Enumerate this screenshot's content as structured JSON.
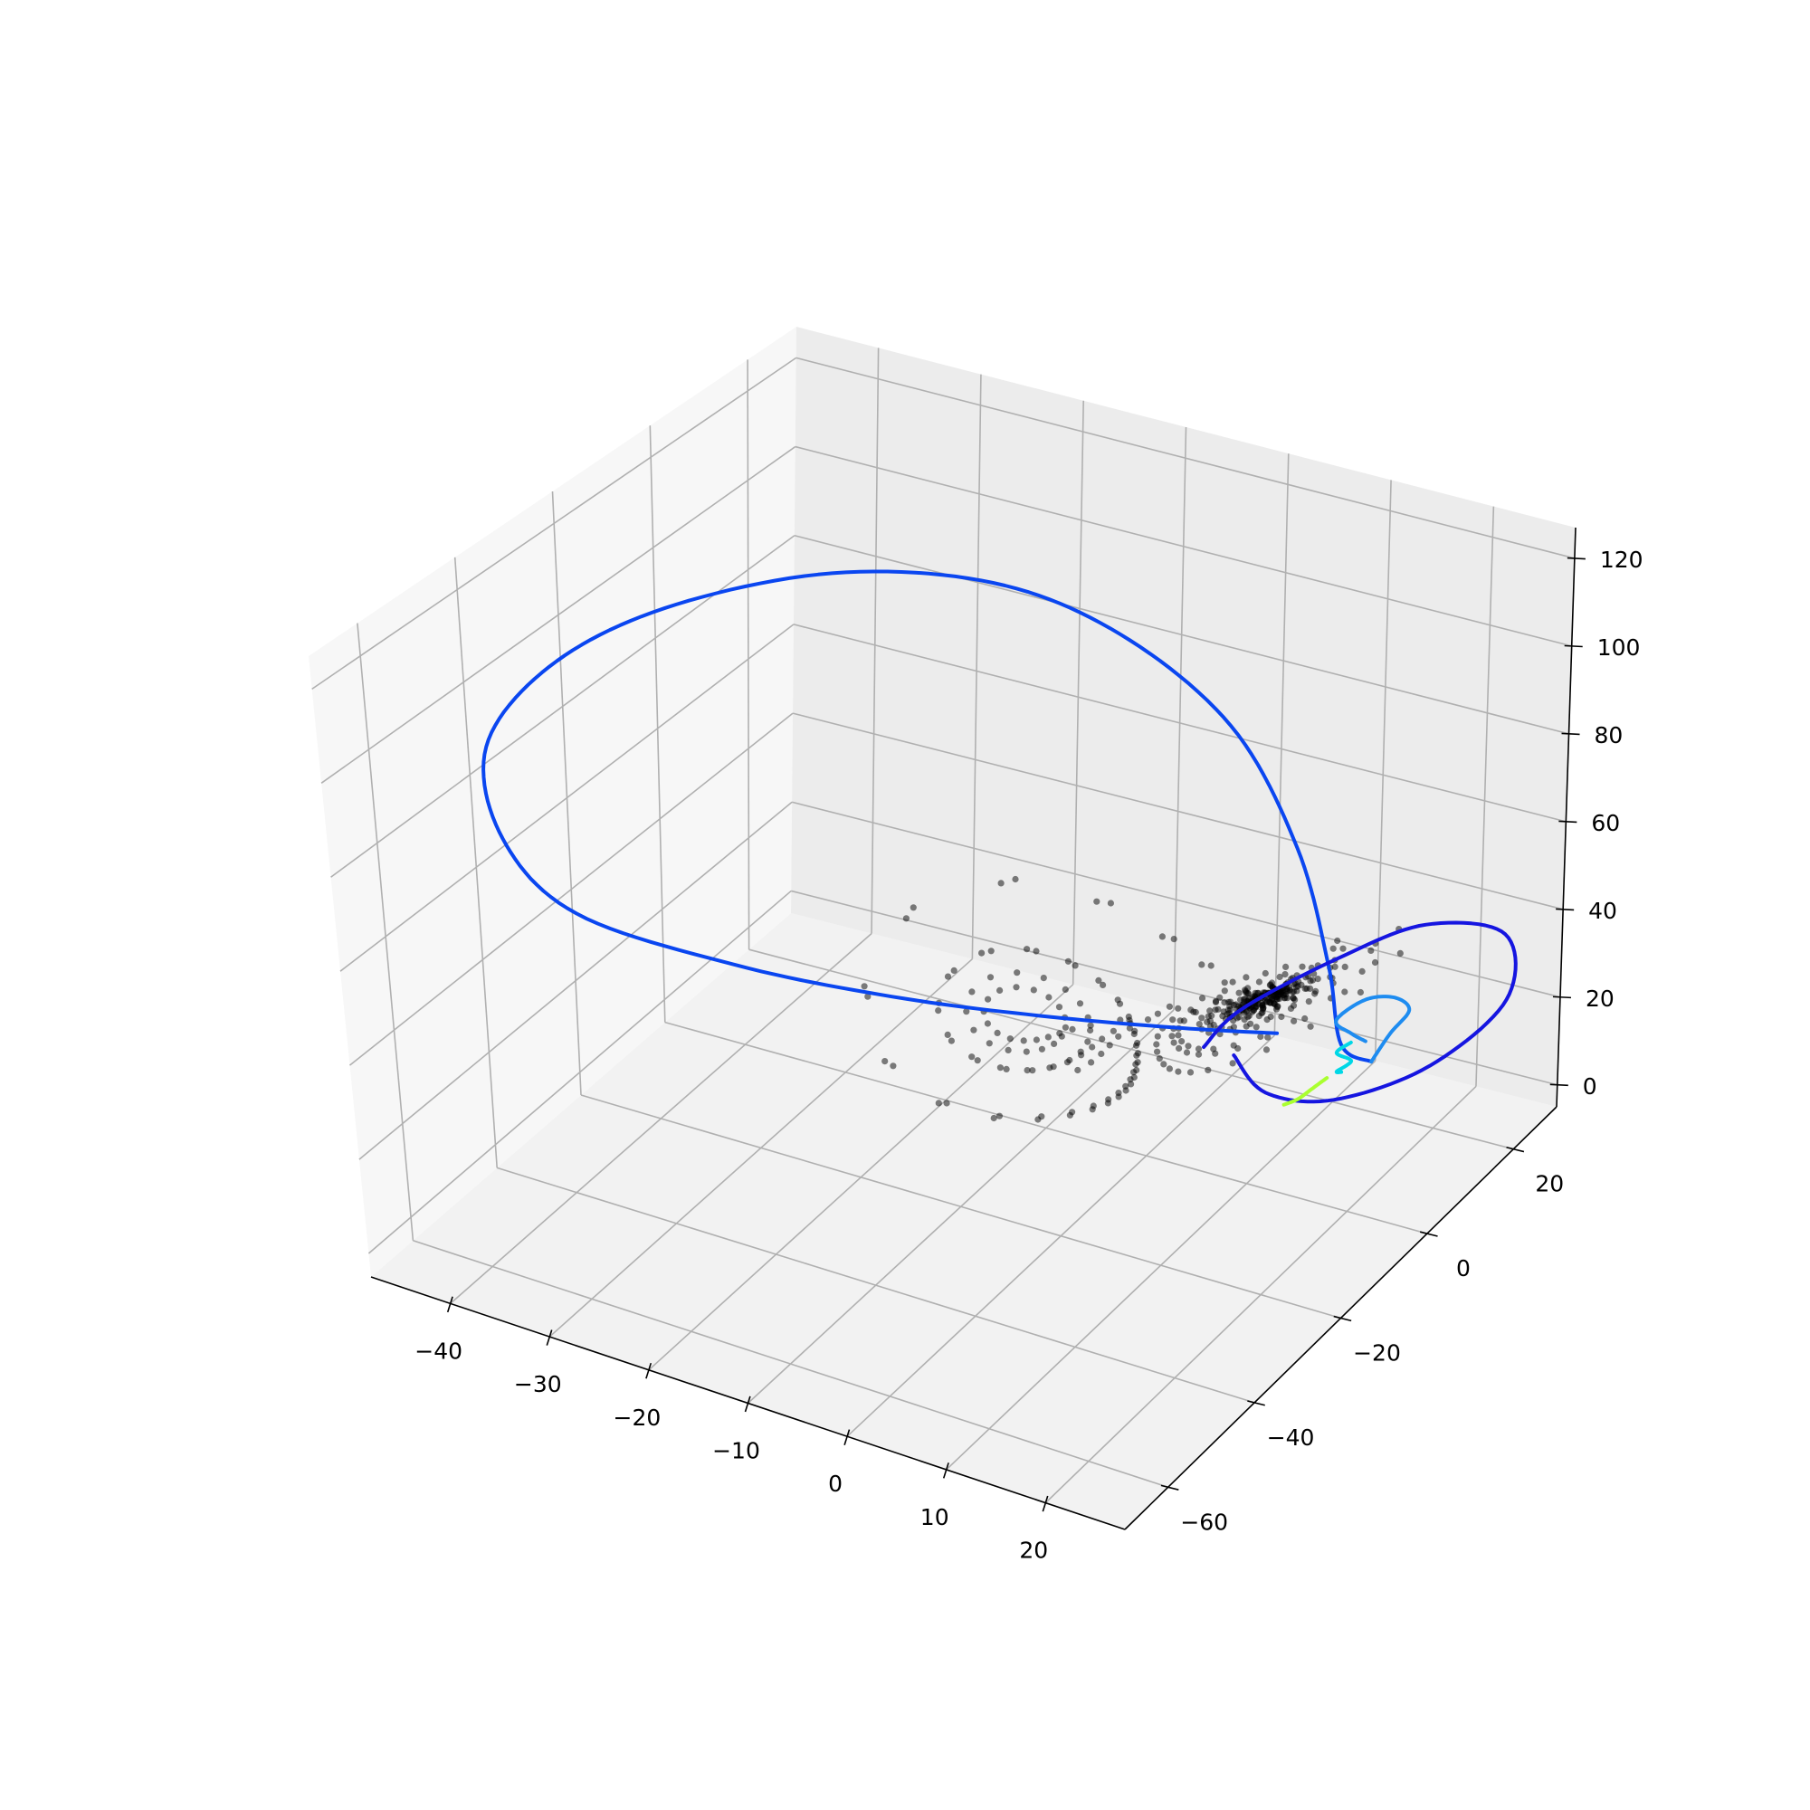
{
  "chart_data": {
    "type": "line3d",
    "title": "",
    "xlabel": "",
    "ylabel": "",
    "zlabel": "",
    "xlim": [
      -48,
      28
    ],
    "ylim": [
      -70,
      30
    ],
    "zlim": [
      -5,
      127
    ],
    "xticks": [
      -40,
      -30,
      -20,
      -10,
      0,
      10,
      20
    ],
    "yticks": [
      -60,
      -40,
      -20,
      0,
      20
    ],
    "zticks": [
      0,
      20,
      40,
      60,
      80,
      100,
      120
    ],
    "xtick_labels": [
      "−40",
      "−30",
      "−20",
      "−10",
      "0",
      "10",
      "20"
    ],
    "ytick_labels": [
      "−60",
      "−40",
      "−20",
      "0",
      "20"
    ],
    "ztick_labels": [
      "0",
      "20",
      "40",
      "60",
      "80",
      "100",
      "120"
    ],
    "grid": true,
    "pane_colors": {
      "floor": "#f2f2f2",
      "left_wall": "#f7f7f7",
      "back_wall": "#ececec"
    },
    "series": [
      {
        "kind": "line",
        "color": "#0a46f0",
        "points": [
          [
            12,
            3,
            26
          ],
          [
            5,
            -3,
            28
          ],
          [
            -5,
            -12,
            32
          ],
          [
            -15,
            -22,
            38
          ],
          [
            -25,
            -34,
            48
          ],
          [
            -35,
            -46,
            62
          ],
          [
            -40,
            -50,
            78
          ],
          [
            -42,
            -48,
            95
          ],
          [
            -39,
            -40,
            108
          ],
          [
            -32,
            -30,
            117
          ],
          [
            -22,
            -16,
            120
          ],
          [
            -12,
            -4,
            115
          ],
          [
            -4,
            5,
            102
          ],
          [
            4,
            11,
            82
          ],
          [
            10,
            12,
            58
          ],
          [
            14,
            10,
            36
          ],
          [
            17,
            6,
            24
          ],
          [
            20,
            6,
            22
          ]
        ]
      },
      {
        "kind": "line",
        "color": "#1515e0",
        "points": [
          [
            9,
            0,
            22
          ],
          [
            13,
            -2,
            18
          ],
          [
            18,
            2,
            16
          ],
          [
            24,
            10,
            20
          ],
          [
            28,
            18,
            30
          ],
          [
            26,
            22,
            40
          ],
          [
            20,
            18,
            42
          ],
          [
            14,
            12,
            36
          ],
          [
            8,
            4,
            28
          ],
          [
            6,
            0,
            22
          ]
        ]
      },
      {
        "kind": "line",
        "color": "#1e8cf0",
        "points": [
          [
            20,
            6,
            22
          ],
          [
            21,
            8,
            27
          ],
          [
            22,
            10,
            31
          ],
          [
            21,
            9,
            34
          ],
          [
            19,
            7,
            34
          ],
          [
            17,
            5,
            30
          ],
          [
            18,
            6,
            27
          ],
          [
            19,
            7,
            25
          ]
        ]
      },
      {
        "kind": "line",
        "color": "#00d7e6",
        "points": [
          [
            18,
            6,
            25
          ],
          [
            17,
            5,
            23
          ],
          [
            18,
            6,
            21
          ],
          [
            17,
            5,
            19
          ],
          [
            17,
            6,
            18
          ]
        ]
      },
      {
        "kind": "line",
        "color": "#aaff30",
        "points": [
          [
            16,
            5,
            17
          ],
          [
            15,
            4,
            15
          ],
          [
            14,
            3,
            13
          ],
          [
            13,
            2,
            12
          ]
        ]
      },
      {
        "kind": "scatter",
        "color": "#000000",
        "opacity": 0.5,
        "attractor": "lorenz",
        "count": 420
      }
    ]
  }
}
